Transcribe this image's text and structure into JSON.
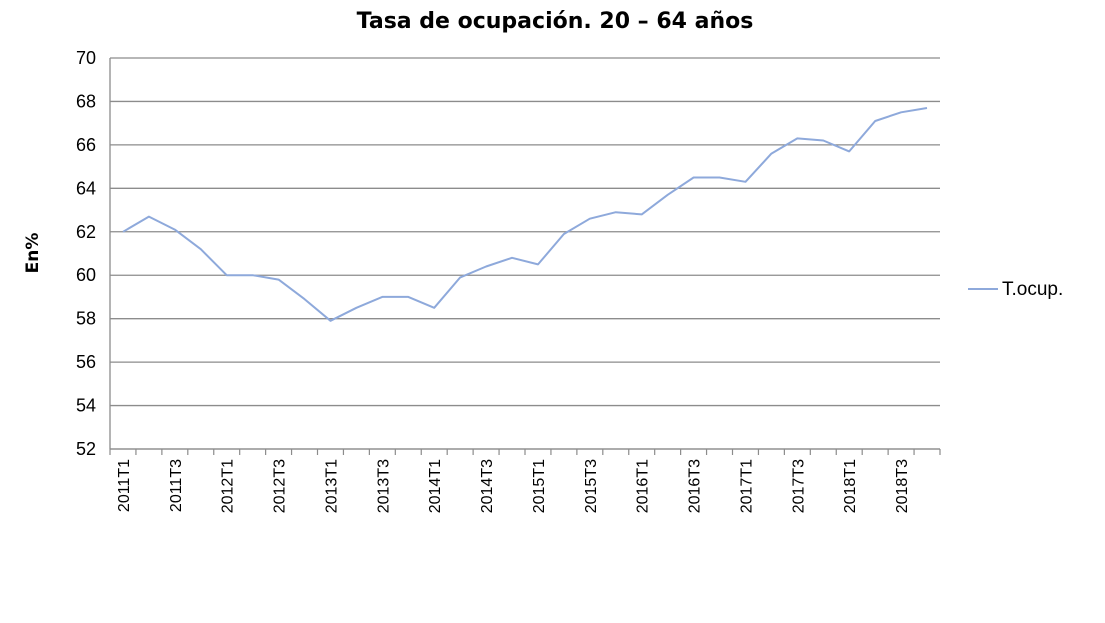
{
  "chart_data": {
    "type": "line",
    "title": "Tasa de ocupación. 20 – 64 años",
    "ylabel": "En%",
    "xlabel": "",
    "ylim": [
      52,
      70
    ],
    "yticks": [
      52,
      54,
      56,
      58,
      60,
      62,
      64,
      66,
      68,
      70
    ],
    "grid": "horizontal",
    "legend_position": "right",
    "tick_labels": [
      "2011T1",
      "2011T3",
      "2012T1",
      "2012T3",
      "2013T1",
      "2013T3",
      "2014T1",
      "2014T3",
      "2015T1",
      "2015T3",
      "2016T1",
      "2016T3",
      "2017T1",
      "2017T3",
      "2018T1",
      "2018T3"
    ],
    "categories": [
      "2011T1",
      "2011T2",
      "2011T3",
      "2011T4",
      "2012T1",
      "2012T2",
      "2012T3",
      "2012T4",
      "2013T1",
      "2013T2",
      "2013T3",
      "2013T4",
      "2014T1",
      "2014T2",
      "2014T3",
      "2014T4",
      "2015T1",
      "2015T2",
      "2015T3",
      "2015T4",
      "2016T1",
      "2016T2",
      "2016T3",
      "2016T4",
      "2017T1",
      "2017T2",
      "2017T3",
      "2017T4",
      "2018T1",
      "2018T2",
      "2018T3",
      "2018T4"
    ],
    "series": [
      {
        "name": "T.ocup.",
        "color": "#8EA9DB",
        "values": [
          62.0,
          62.7,
          62.1,
          61.2,
          60.0,
          60.0,
          59.8,
          58.9,
          57.9,
          58.5,
          59.0,
          59.0,
          58.5,
          59.9,
          60.4,
          60.8,
          60.5,
          61.9,
          62.6,
          62.9,
          62.8,
          63.7,
          64.5,
          64.5,
          64.3,
          65.6,
          66.3,
          66.2,
          65.7,
          67.1,
          67.5,
          67.7
        ]
      }
    ]
  }
}
